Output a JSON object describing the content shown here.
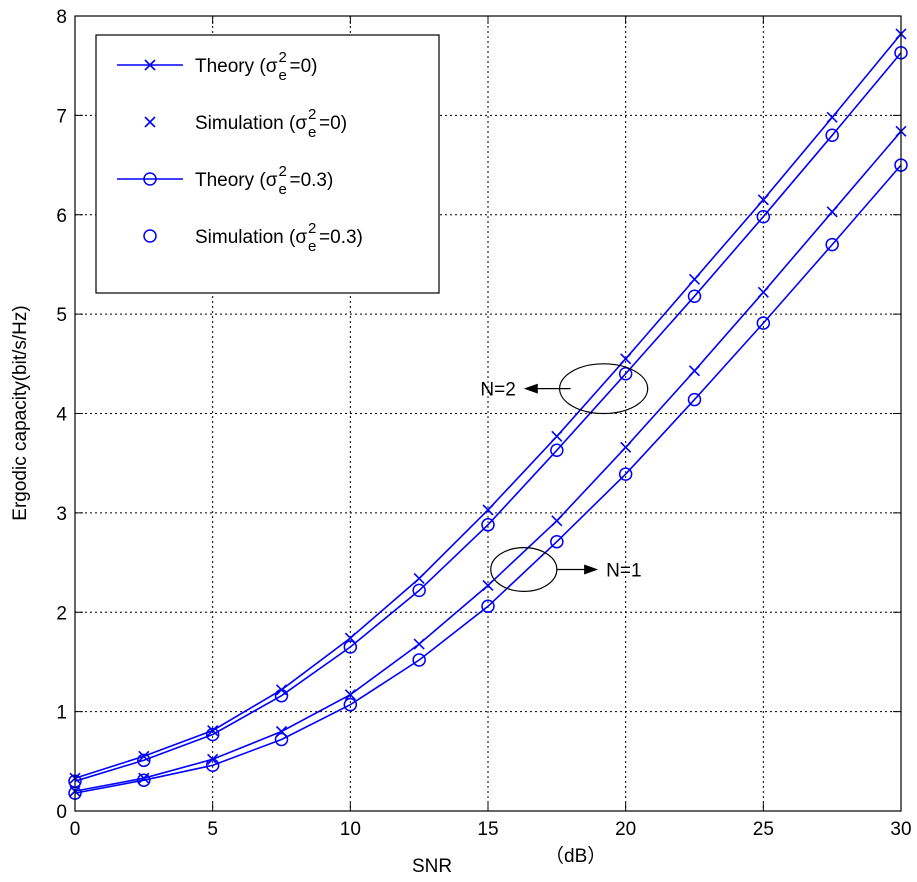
{
  "chart_data": {
    "type": "line",
    "xlabel": "SNR",
    "xlabel_unit": "（dB）",
    "ylabel": "Ergodic capacity(bit/s/Hz)",
    "xlim": [
      0,
      30
    ],
    "ylim": [
      0,
      8
    ],
    "xticks": [
      0,
      5,
      10,
      15,
      20,
      25,
      30
    ],
    "yticks": [
      0,
      1,
      2,
      3,
      4,
      5,
      6,
      7,
      8
    ],
    "grid": true,
    "grid_style": "dotted",
    "legend_position": "top-left",
    "line_color": "#0000ff",
    "legend": [
      {
        "prefix": "Theory (σ",
        "sup": "2",
        "sub": "e",
        "suffix": "=0)",
        "marker": "x",
        "line": true
      },
      {
        "prefix": "Simulation (σ",
        "sup": "2",
        "sub": "e",
        "suffix": "=0)",
        "marker": "x",
        "line": false
      },
      {
        "prefix": "Theory (σ",
        "sup": "2",
        "sub": "e",
        "suffix": "=0.3)",
        "marker": "o",
        "line": true
      },
      {
        "prefix": "Simulation (σ",
        "sup": "2",
        "sub": "e",
        "suffix": "=0.3)",
        "marker": "o",
        "line": false
      }
    ],
    "x": [
      0,
      2.5,
      5,
      7.5,
      10,
      12.5,
      15,
      17.5,
      20,
      22.5,
      25,
      27.5,
      30
    ],
    "series": [
      {
        "group": "N=2",
        "marker": "x",
        "values": [
          0.33,
          0.55,
          0.81,
          1.22,
          1.74,
          2.34,
          3.03,
          3.77,
          4.55,
          5.35,
          6.15,
          6.98,
          7.82
        ]
      },
      {
        "group": "N=2",
        "marker": "o",
        "values": [
          0.3,
          0.51,
          0.77,
          1.16,
          1.65,
          2.22,
          2.88,
          3.63,
          4.4,
          5.18,
          5.98,
          6.8,
          7.63
        ]
      },
      {
        "group": "N=1",
        "marker": "x",
        "values": [
          0.2,
          0.33,
          0.52,
          0.8,
          1.17,
          1.68,
          2.27,
          2.92,
          3.66,
          4.43,
          5.22,
          6.03,
          6.84
        ]
      },
      {
        "group": "N=1",
        "marker": "o",
        "values": [
          0.18,
          0.31,
          0.46,
          0.72,
          1.07,
          1.52,
          2.06,
          2.71,
          3.39,
          4.14,
          4.91,
          5.7,
          6.5
        ]
      }
    ],
    "annotations": [
      {
        "text": "N=2",
        "ellipse_center": [
          19.2,
          4.25
        ],
        "ellipse_radii": [
          1.6,
          0.25
        ],
        "arrow_from_x": 18.0,
        "arrow_to_x": 16.3
      },
      {
        "text": "N=1",
        "ellipse_center": [
          16.3,
          2.43
        ],
        "ellipse_radii": [
          1.2,
          0.22
        ],
        "arrow_from_x": 17.5,
        "arrow_to_x": 19.0
      }
    ]
  }
}
